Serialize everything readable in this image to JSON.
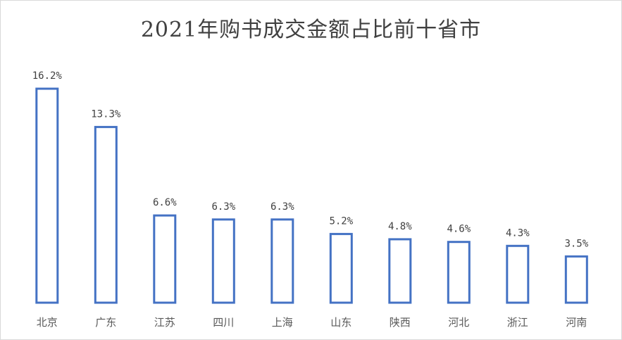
{
  "chart_data": {
    "type": "bar",
    "title": "2021年购书成交金额占比前十省市",
    "xlabel": "",
    "ylabel": "",
    "categories": [
      "北京",
      "广东",
      "江苏",
      "四川",
      "上海",
      "山东",
      "陕西",
      "河北",
      "浙江",
      "河南"
    ],
    "values": [
      16.2,
      13.3,
      6.6,
      6.3,
      6.3,
      5.2,
      4.8,
      4.6,
      4.3,
      3.5
    ],
    "data_labels": [
      "16.2%",
      "13.3%",
      "6.6%",
      "6.3%",
      "6.3%",
      "5.2%",
      "4.8%",
      "4.6%",
      "4.3%",
      "3.5%"
    ],
    "ylim": [
      0,
      16.2
    ],
    "grid": false,
    "legend": "none",
    "bar_style": "outline",
    "bar_color": "#4472C4"
  }
}
